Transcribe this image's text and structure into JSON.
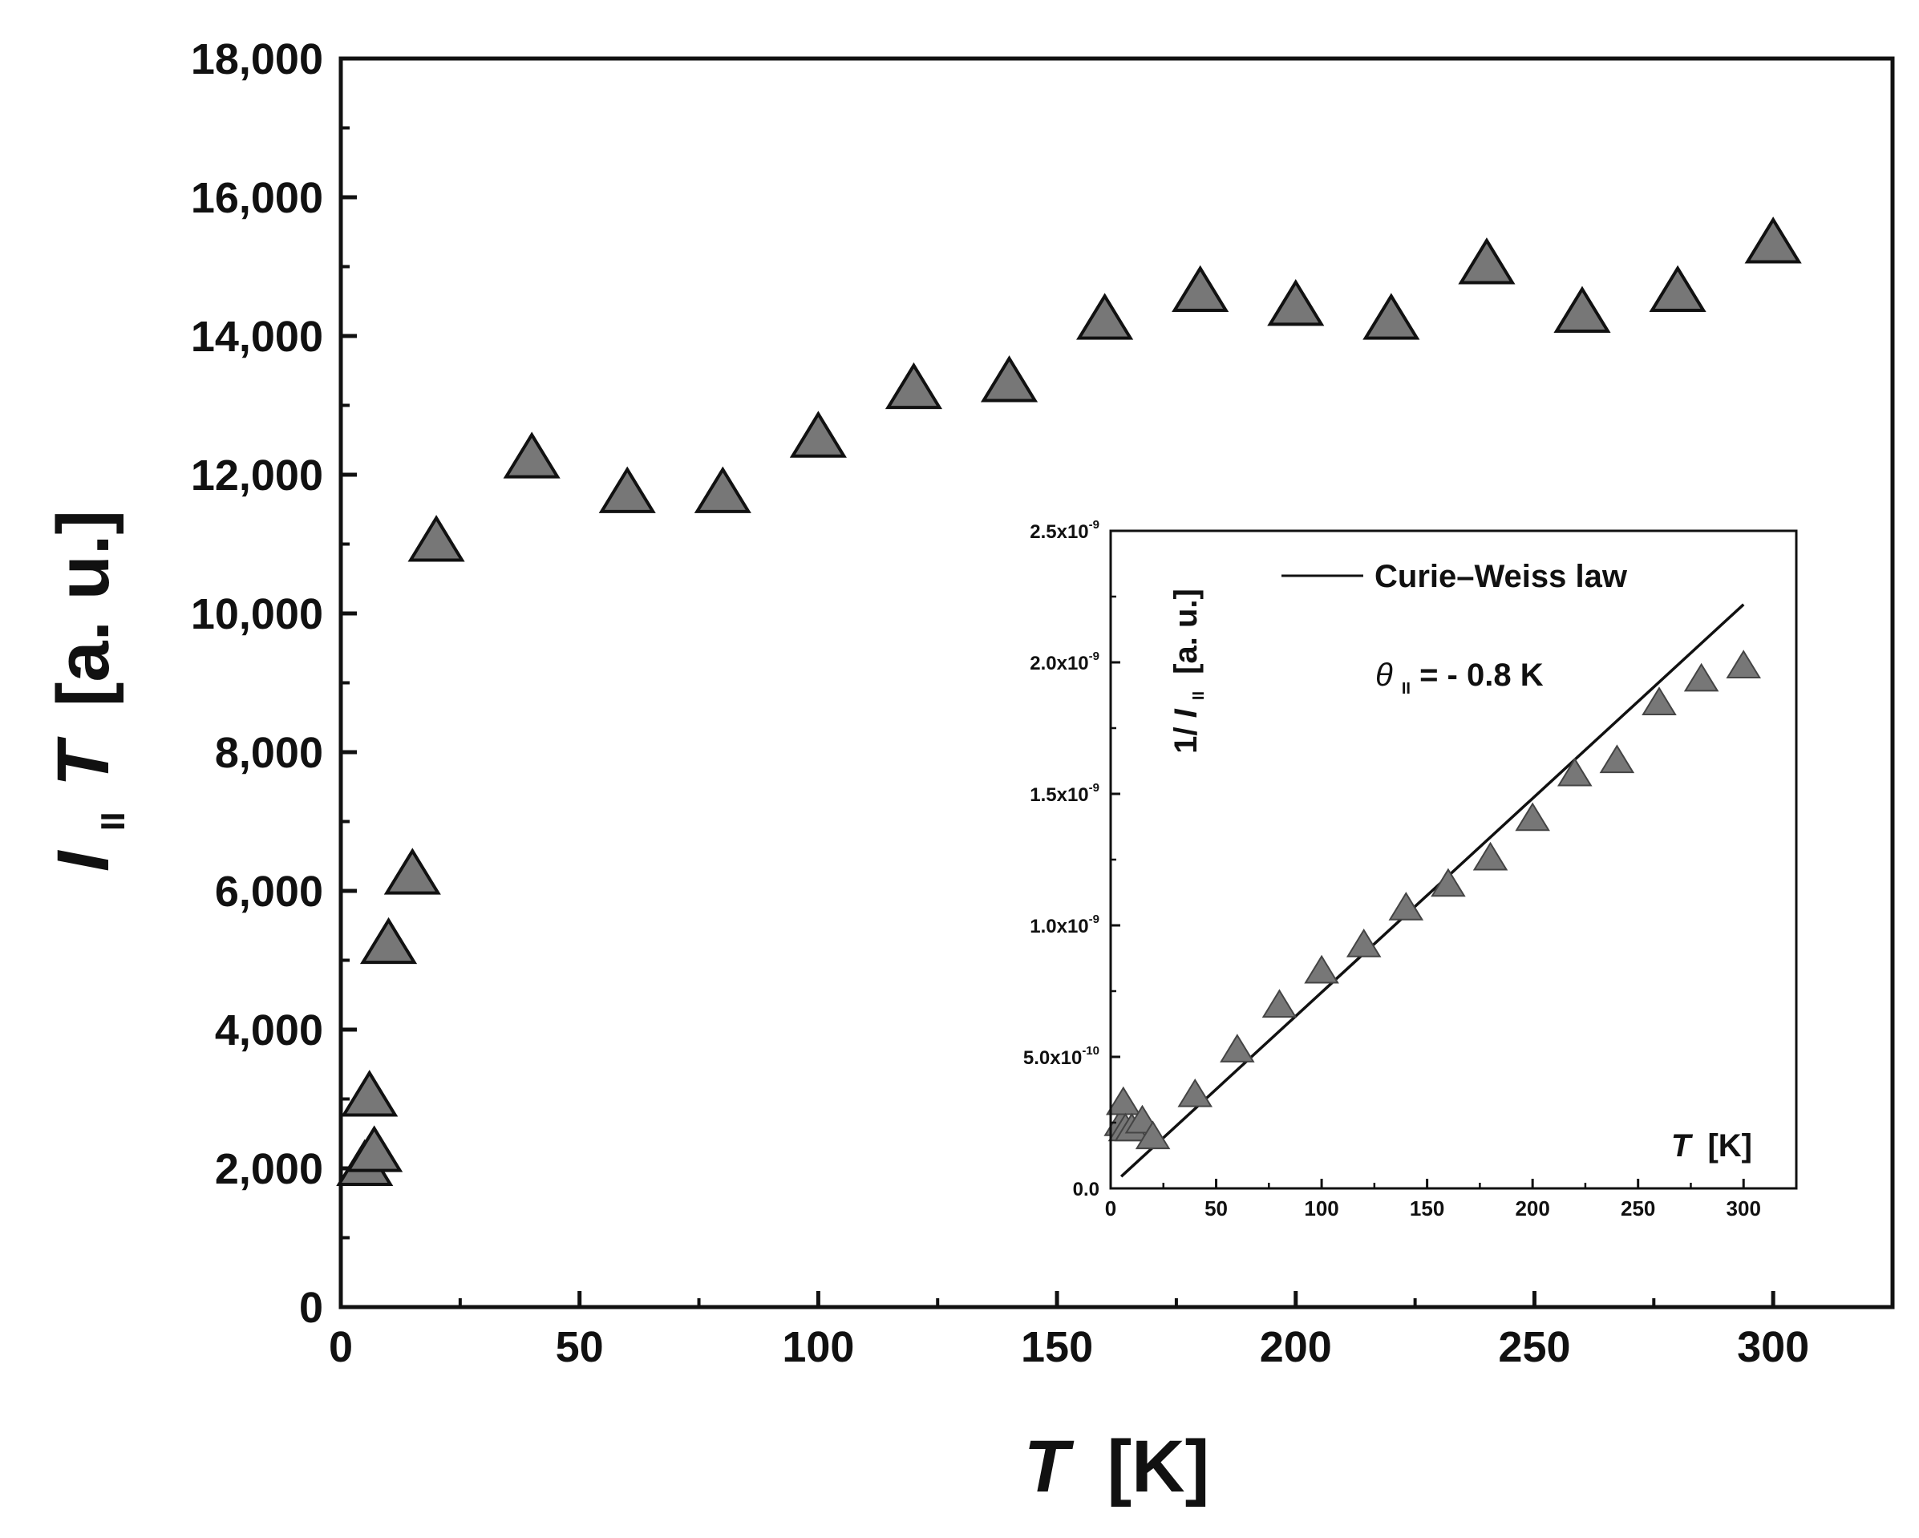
{
  "chart_data": [
    {
      "type": "scatter",
      "role": "main",
      "xlabel": {
        "var": "T",
        "unit": "[K]"
      },
      "ylabel": {
        "var": "I",
        "sub": "II",
        "var2": "T",
        "unit": "[a. u.]"
      },
      "xlim": [
        0,
        325
      ],
      "ylim": [
        0,
        18000
      ],
      "xticks": [
        0,
        50,
        100,
        150,
        200,
        250,
        300
      ],
      "xtick_labels": [
        "0",
        "50",
        "100",
        "150",
        "200",
        "250",
        "300"
      ],
      "yticks": [
        0,
        2000,
        4000,
        6000,
        8000,
        10000,
        12000,
        14000,
        16000,
        18000
      ],
      "ytick_labels": [
        "0",
        "2,000",
        "4,000",
        "6,000",
        "8,000",
        "10,000",
        "12,000",
        "14,000",
        "16,000",
        "18,000"
      ],
      "grid": false,
      "marker": "triangle",
      "marker_color": "#777777",
      "series": [
        {
          "x": [
            5,
            6,
            7,
            10,
            15,
            20,
            40,
            60,
            80,
            100,
            120,
            140,
            160,
            180,
            200,
            220,
            240,
            260,
            280,
            300
          ],
          "y": [
            2000,
            3000,
            2200,
            5200,
            6200,
            11000,
            12200,
            11700,
            11700,
            12500,
            13200,
            13300,
            14200,
            14600,
            14400,
            14200,
            15000,
            14300,
            14600,
            15300
          ]
        }
      ]
    },
    {
      "type": "scatter",
      "role": "inset",
      "xlabel": {
        "var": "T",
        "unit": "[K]"
      },
      "ylabel": {
        "prefix": "1/",
        "var": "I",
        "sub": "II",
        "unit": "[a. u.]"
      },
      "xlim": [
        0,
        325
      ],
      "ylim": [
        0,
        2.5e-09
      ],
      "xticks": [
        0,
        50,
        100,
        150,
        200,
        250,
        300
      ],
      "xtick_labels": [
        "0",
        "50",
        "100",
        "150",
        "200",
        "250",
        "300"
      ],
      "yticks": [
        0,
        5e-10,
        1e-09,
        1.5e-09,
        2e-09,
        2.5e-09
      ],
      "ytick_labels": [
        {
          "base": "0.0",
          "exp": ""
        },
        {
          "base": "5.0x10",
          "exp": "-10"
        },
        {
          "base": "1.0x10",
          "exp": "-9"
        },
        {
          "base": "1.5x10",
          "exp": "-9"
        },
        {
          "base": "2.0x10",
          "exp": "-9"
        },
        {
          "base": "2.5x10",
          "exp": "-9"
        }
      ],
      "grid": false,
      "legend": {
        "position": "top",
        "entries": [
          "Curie–Weiss law"
        ]
      },
      "annotation": {
        "symbol": "θ",
        "sub": "II",
        "text": "= - 0.8 K"
      },
      "marker": "triangle",
      "marker_color": "#777777",
      "series": [
        {
          "x": [
            5,
            6,
            7,
            10,
            15,
            20,
            40,
            60,
            80,
            100,
            120,
            140,
            160,
            180,
            200,
            220,
            240,
            260,
            280,
            300
          ],
          "y": [
            2.4e-10,
            3.2e-10,
            2.2e-10,
            2.2e-10,
            2.5e-10,
            1.9e-10,
            3.5e-10,
            5.2e-10,
            6.9e-10,
            8.2e-10,
            9.2e-10,
            1.06e-09,
            1.15e-09,
            1.25e-09,
            1.4e-09,
            1.57e-09,
            1.62e-09,
            1.84e-09,
            1.93e-09,
            1.98e-09
          ]
        }
      ],
      "fit_line": {
        "name": "Curie–Weiss law",
        "x": [
          5,
          300
        ],
        "y": [
          4.5e-11,
          2.22e-09
        ]
      }
    }
  ]
}
